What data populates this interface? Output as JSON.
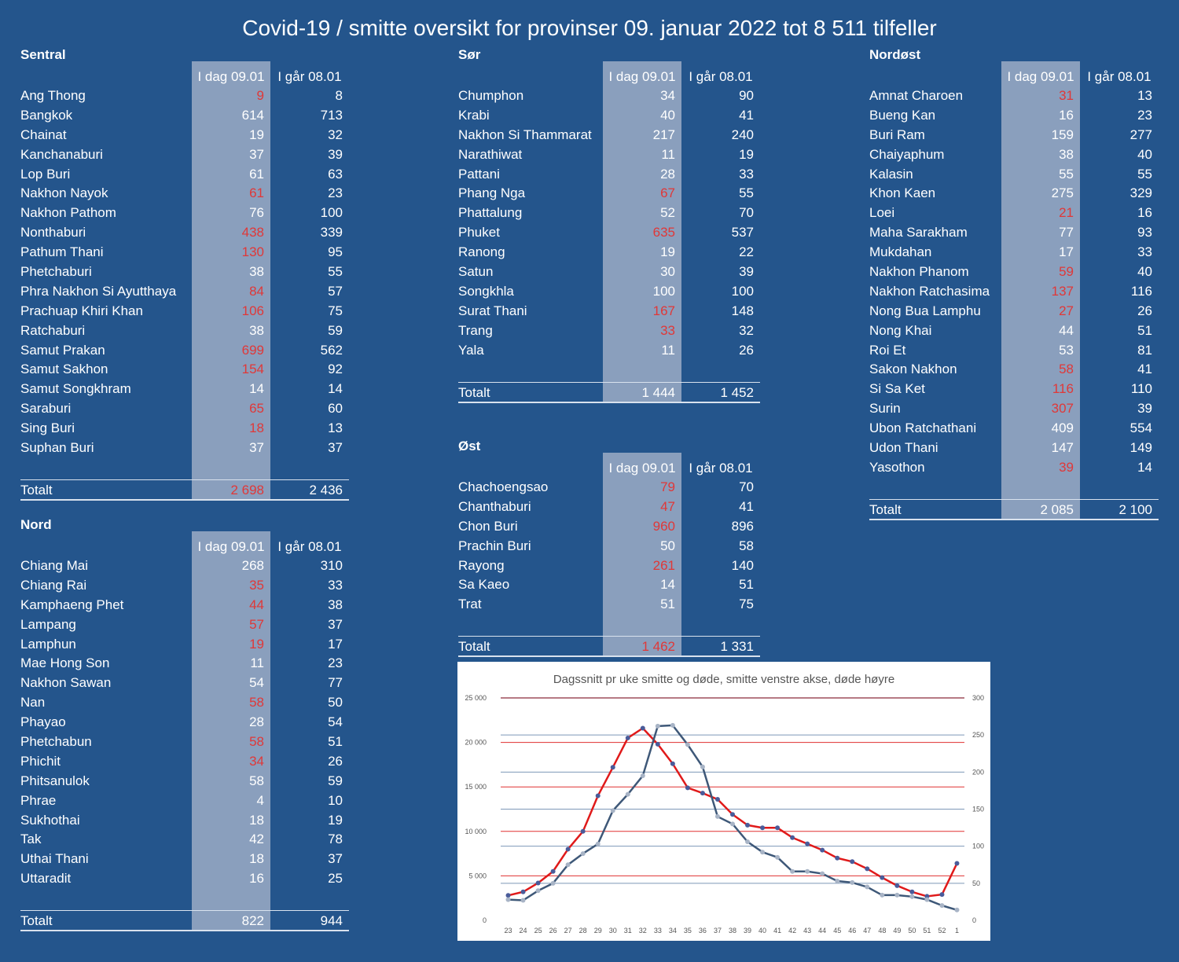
{
  "title": "Covid-19 / smitte oversikt for provinser 09. januar 2022 tot 8 511 tilfeller",
  "col_today": "I dag 09.01",
  "col_yesterday": "I går 08.01",
  "total_label": "Totalt",
  "colors": {
    "background": "#24558c",
    "band": "#8a9fbd",
    "highlight": "#e03838",
    "infected_line": "#e01a1a",
    "deaths_line": "#3e5878"
  },
  "regions": [
    {
      "key": "sentral",
      "title": "Sentral",
      "rows": [
        {
          "name": "Ang Thong",
          "today": "9",
          "yesterday": "8",
          "up": true
        },
        {
          "name": "Bangkok",
          "today": "614",
          "yesterday": "713",
          "up": false
        },
        {
          "name": "Chainat",
          "today": "19",
          "yesterday": "32",
          "up": false
        },
        {
          "name": "Kanchanaburi",
          "today": "37",
          "yesterday": "39",
          "up": false
        },
        {
          "name": "Lop Buri",
          "today": "61",
          "yesterday": "63",
          "up": false
        },
        {
          "name": "Nakhon Nayok",
          "today": "61",
          "yesterday": "23",
          "up": true
        },
        {
          "name": "Nakhon Pathom",
          "today": "76",
          "yesterday": "100",
          "up": false
        },
        {
          "name": "Nonthaburi",
          "today": "438",
          "yesterday": "339",
          "up": true
        },
        {
          "name": "Pathum Thani",
          "today": "130",
          "yesterday": "95",
          "up": true
        },
        {
          "name": "Phetchaburi",
          "today": "38",
          "yesterday": "55",
          "up": false
        },
        {
          "name": "Phra Nakhon Si Ayutthaya",
          "today": "84",
          "yesterday": "57",
          "up": true
        },
        {
          "name": "Prachuap Khiri Khan",
          "today": "106",
          "yesterday": "75",
          "up": true
        },
        {
          "name": "Ratchaburi",
          "today": "38",
          "yesterday": "59",
          "up": false
        },
        {
          "name": "Samut Prakan",
          "today": "699",
          "yesterday": "562",
          "up": true
        },
        {
          "name": "Samut Sakhon",
          "today": "154",
          "yesterday": "92",
          "up": true
        },
        {
          "name": "Samut Songkhram",
          "today": "14",
          "yesterday": "14",
          "up": false
        },
        {
          "name": "Saraburi",
          "today": "65",
          "yesterday": "60",
          "up": true
        },
        {
          "name": "Sing Buri",
          "today": "18",
          "yesterday": "13",
          "up": true
        },
        {
          "name": "Suphan Buri",
          "today": "37",
          "yesterday": "37",
          "up": false
        }
      ],
      "total": {
        "today": "2 698",
        "yesterday": "2 436",
        "up": true
      }
    },
    {
      "key": "nord",
      "title": "Nord",
      "rows": [
        {
          "name": "Chiang Mai",
          "today": "268",
          "yesterday": "310",
          "up": false
        },
        {
          "name": "Chiang Rai",
          "today": "35",
          "yesterday": "33",
          "up": true
        },
        {
          "name": "Kamphaeng Phet",
          "today": "44",
          "yesterday": "38",
          "up": true
        },
        {
          "name": "Lampang",
          "today": "57",
          "yesterday": "37",
          "up": true
        },
        {
          "name": "Lamphun",
          "today": "19",
          "yesterday": "17",
          "up": true
        },
        {
          "name": "Mae Hong Son",
          "today": "11",
          "yesterday": "23",
          "up": false
        },
        {
          "name": "Nakhon Sawan",
          "today": "54",
          "yesterday": "77",
          "up": false
        },
        {
          "name": "Nan",
          "today": "58",
          "yesterday": "50",
          "up": true
        },
        {
          "name": "Phayao",
          "today": "28",
          "yesterday": "54",
          "up": false
        },
        {
          "name": "Phetchabun",
          "today": "58",
          "yesterday": "51",
          "up": true
        },
        {
          "name": "Phichit",
          "today": "34",
          "yesterday": "26",
          "up": true
        },
        {
          "name": "Phitsanulok",
          "today": "58",
          "yesterday": "59",
          "up": false
        },
        {
          "name": "Phrae",
          "today": "4",
          "yesterday": "10",
          "up": false
        },
        {
          "name": "Sukhothai",
          "today": "18",
          "yesterday": "19",
          "up": false
        },
        {
          "name": "Tak",
          "today": "42",
          "yesterday": "78",
          "up": false
        },
        {
          "name": "Uthai Thani",
          "today": "18",
          "yesterday": "37",
          "up": false
        },
        {
          "name": "Uttaradit",
          "today": "16",
          "yesterday": "25",
          "up": false
        }
      ],
      "total": {
        "today": "822",
        "yesterday": "944",
        "up": false
      }
    },
    {
      "key": "sor",
      "title": "Sør",
      "rows": [
        {
          "name": "Chumphon",
          "today": "34",
          "yesterday": "90",
          "up": false
        },
        {
          "name": "Krabi",
          "today": "40",
          "yesterday": "41",
          "up": false
        },
        {
          "name": "Nakhon Si Thammarat",
          "today": "217",
          "yesterday": "240",
          "up": false
        },
        {
          "name": "Narathiwat",
          "today": "11",
          "yesterday": "19",
          "up": false
        },
        {
          "name": "Pattani",
          "today": "28",
          "yesterday": "33",
          "up": false
        },
        {
          "name": "Phang Nga",
          "today": "67",
          "yesterday": "55",
          "up": true
        },
        {
          "name": "Phattalung",
          "today": "52",
          "yesterday": "70",
          "up": false
        },
        {
          "name": "Phuket",
          "today": "635",
          "yesterday": "537",
          "up": true
        },
        {
          "name": "Ranong",
          "today": "19",
          "yesterday": "22",
          "up": false
        },
        {
          "name": "Satun",
          "today": "30",
          "yesterday": "39",
          "up": false
        },
        {
          "name": "Songkhla",
          "today": "100",
          "yesterday": "100",
          "up": false
        },
        {
          "name": "Surat Thani",
          "today": "167",
          "yesterday": "148",
          "up": true
        },
        {
          "name": "Trang",
          "today": "33",
          "yesterday": "32",
          "up": true
        },
        {
          "name": "Yala",
          "today": "11",
          "yesterday": "26",
          "up": false
        }
      ],
      "total": {
        "today": "1 444",
        "yesterday": "1 452",
        "up": false
      }
    },
    {
      "key": "ost",
      "title": "Øst",
      "rows": [
        {
          "name": "Chachoengsao",
          "today": "79",
          "yesterday": "70",
          "up": true
        },
        {
          "name": "Chanthaburi",
          "today": "47",
          "yesterday": "41",
          "up": true
        },
        {
          "name": "Chon Buri",
          "today": "960",
          "yesterday": "896",
          "up": true
        },
        {
          "name": "Prachin Buri",
          "today": "50",
          "yesterday": "58",
          "up": false
        },
        {
          "name": "Rayong",
          "today": "261",
          "yesterday": "140",
          "up": true
        },
        {
          "name": "Sa Kaeo",
          "today": "14",
          "yesterday": "51",
          "up": false
        },
        {
          "name": "Trat",
          "today": "51",
          "yesterday": "75",
          "up": false
        }
      ],
      "total": {
        "today": "1 462",
        "yesterday": "1 331",
        "up": true
      }
    },
    {
      "key": "nordost",
      "title": "Nordøst",
      "rows": [
        {
          "name": "Amnat Charoen",
          "today": "31",
          "yesterday": "13",
          "up": true
        },
        {
          "name": "Bueng Kan",
          "today": "16",
          "yesterday": "23",
          "up": false
        },
        {
          "name": "Buri Ram",
          "today": "159",
          "yesterday": "277",
          "up": false
        },
        {
          "name": "Chaiyaphum",
          "today": "38",
          "yesterday": "40",
          "up": false
        },
        {
          "name": "Kalasin",
          "today": "55",
          "yesterday": "55",
          "up": false
        },
        {
          "name": "Khon Kaen",
          "today": "275",
          "yesterday": "329",
          "up": false
        },
        {
          "name": "Loei",
          "today": "21",
          "yesterday": "16",
          "up": true
        },
        {
          "name": "Maha Sarakham",
          "today": "77",
          "yesterday": "93",
          "up": false
        },
        {
          "name": "Mukdahan",
          "today": "17",
          "yesterday": "33",
          "up": false
        },
        {
          "name": "Nakhon Phanom",
          "today": "59",
          "yesterday": "40",
          "up": true
        },
        {
          "name": "Nakhon Ratchasima",
          "today": "137",
          "yesterday": "116",
          "up": true
        },
        {
          "name": "Nong Bua Lamphu",
          "today": "27",
          "yesterday": "26",
          "up": true
        },
        {
          "name": "Nong Khai",
          "today": "44",
          "yesterday": "51",
          "up": false
        },
        {
          "name": "Roi Et",
          "today": "53",
          "yesterday": "81",
          "up": false
        },
        {
          "name": "Sakon Nakhon",
          "today": "58",
          "yesterday": "41",
          "up": true
        },
        {
          "name": "Si Sa Ket",
          "today": "116",
          "yesterday": "110",
          "up": true
        },
        {
          "name": "Surin",
          "today": "307",
          "yesterday": "39",
          "up": true
        },
        {
          "name": "Ubon Ratchathani",
          "today": "409",
          "yesterday": "554",
          "up": false
        },
        {
          "name": "Udon Thani",
          "today": "147",
          "yesterday": "149",
          "up": false
        },
        {
          "name": "Yasothon",
          "today": "39",
          "yesterday": "14",
          "up": true
        }
      ],
      "total": {
        "today": "2 085",
        "yesterday": "2 100",
        "up": false
      }
    }
  ],
  "chart_data": {
    "type": "line",
    "title": "Dagssnitt pr uke smitte og døde, smitte venstre akse, døde høyre",
    "x": [
      "23",
      "24",
      "25",
      "26",
      "27",
      "28",
      "29",
      "30",
      "31",
      "32",
      "33",
      "34",
      "35",
      "36",
      "37",
      "38",
      "39",
      "40",
      "41",
      "42",
      "43",
      "44",
      "45",
      "46",
      "47",
      "48",
      "49",
      "50",
      "51",
      "52",
      "1"
    ],
    "y_left": {
      "range": [
        0,
        25000
      ],
      "ticks": [
        "0",
        "5 000",
        "10 000",
        "15 000",
        "20 000",
        "25 000"
      ]
    },
    "y_right": {
      "range": [
        0,
        300
      ],
      "ticks": [
        "0",
        "50",
        "100",
        "150",
        "200",
        "250",
        "300"
      ]
    },
    "series": [
      {
        "axis": "left",
        "color": "#e01a1a",
        "values": [
          2800,
          3200,
          4200,
          5500,
          8000,
          10000,
          14000,
          17200,
          20500,
          21600,
          19800,
          17600,
          14900,
          14300,
          13600,
          11900,
          10700,
          10400,
          10400,
          9300,
          8600,
          7900,
          7000,
          6600,
          5800,
          4800,
          3900,
          3200,
          2700,
          2900,
          6400
        ]
      },
      {
        "axis": "right",
        "color": "#3e5878",
        "values": [
          28,
          27,
          40,
          50,
          75,
          90,
          103,
          148,
          170,
          195,
          262,
          263,
          237,
          207,
          140,
          130,
          106,
          92,
          85,
          66,
          66,
          63,
          53,
          51,
          45,
          34,
          34,
          32,
          28,
          20,
          14
        ]
      }
    ],
    "grid": true,
    "legend": "none"
  }
}
